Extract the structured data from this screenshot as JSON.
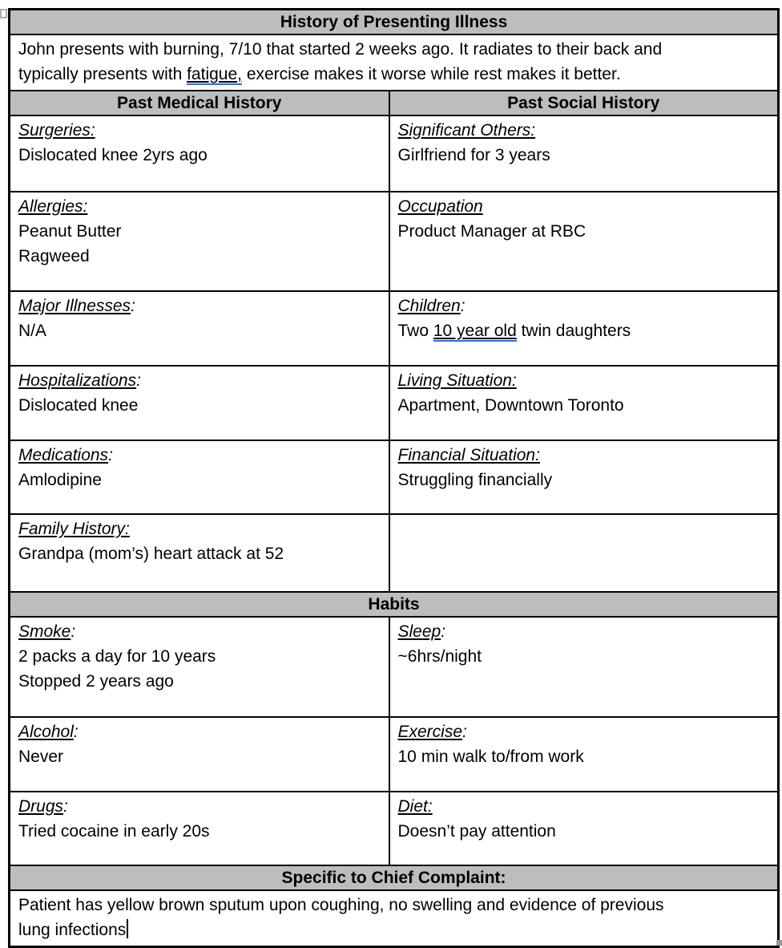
{
  "document": {
    "hpi": {
      "header": "History of Presenting Illness",
      "line1": "John presents with burning, 7/10 that started 2 weeks ago. It radiates to their back and",
      "line2_before": "typically presents with ",
      "line2_flagged": "fatigue,",
      "line2_after": " exercise makes it worse while rest makes it better."
    },
    "columns": {
      "left": "Past Medical History",
      "right": "Past Social History"
    },
    "history_rows": [
      {
        "h": 95,
        "left": {
          "label_u": "Surgeries:",
          "label_rest": "",
          "lines": [
            "Dislocated knee 2yrs ago"
          ]
        },
        "right": {
          "label_u": "Significant Others:",
          "label_rest": "",
          "lines": [
            "Girlfriend for 3 years"
          ]
        }
      },
      {
        "h": 124,
        "left": {
          "label_u": "Allergies:",
          "label_rest": "",
          "lines": [
            "Peanut Butter",
            "Ragweed"
          ]
        },
        "right": {
          "label_u": "Occupation",
          "label_rest": "",
          "lines": [
            "Product Manager at RBC"
          ]
        }
      },
      {
        "h": 93,
        "left": {
          "label_u": "Major Illnesses",
          "label_rest": ":",
          "lines": [
            "N/A"
          ]
        },
        "right": {
          "label_u": "Children",
          "label_rest": ":",
          "lines": [
            {
              "before": "Two ",
              "flagged": "10 year old",
              "after": " twin daughters"
            }
          ]
        }
      },
      {
        "h": 93,
        "left": {
          "label_u": "Hospitalizations",
          "label_rest": ":",
          "lines": [
            "Dislocated knee"
          ]
        },
        "right": {
          "label_u": "Living Situation:",
          "label_rest": "",
          "lines": [
            "Apartment, Downtown Toronto"
          ]
        }
      },
      {
        "h": 92,
        "left": {
          "label_u": "Medications",
          "label_rest": ":",
          "lines": [
            "Amlodipine"
          ]
        },
        "right": {
          "label_u": "Financial Situation:",
          "label_rest": "",
          "lines": [
            "Struggling financially"
          ]
        }
      },
      {
        "h": 97,
        "left": {
          "label_u": "Family History:",
          "label_rest": "",
          "lines": [
            "Grandpa (mom’s) heart attack at 52"
          ]
        },
        "right": null
      }
    ],
    "habits": {
      "header": "Habits"
    },
    "habits_rows": [
      {
        "h": 125,
        "left": {
          "label_u": "Smoke",
          "label_rest": ":",
          "lines": [
            "2 packs a day for 10 years",
            "Stopped 2 years ago"
          ]
        },
        "right": {
          "label_u": "Sleep",
          "label_rest": ":",
          "lines": [
            "~6hrs/night"
          ]
        }
      },
      {
        "h": 93,
        "left": {
          "label_u": "Alcohol",
          "label_rest": ":",
          "lines": [
            "Never"
          ]
        },
        "right": {
          "label_u": "Exercise",
          "label_rest": ":",
          "lines": [
            "10 min walk to/from work"
          ]
        }
      },
      {
        "h": 92,
        "left": {
          "label_u": "Drugs",
          "label_rest": ":",
          "lines": [
            "Tried cocaine in early 20s"
          ]
        },
        "right": {
          "label_u": "Diet:",
          "label_rest": "",
          "lines": [
            "Doesn’t pay attention"
          ]
        }
      }
    ],
    "chief": {
      "header": "Specific to Chief Complaint:",
      "line1": "Patient has yellow brown sputum upon coughing, no swelling and evidence of previous",
      "line2": "lung infections"
    },
    "colors": {
      "header_bg": "#bdbdbd",
      "border": "#000000",
      "grammar_underline_blue": "#2e6bd9"
    }
  }
}
